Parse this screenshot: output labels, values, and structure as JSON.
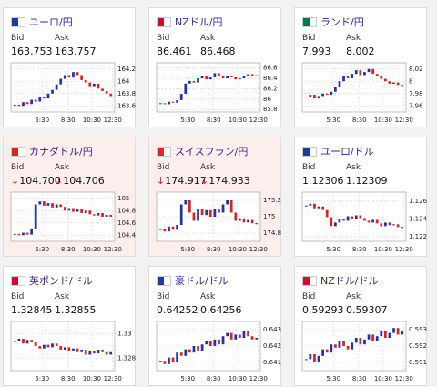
{
  "labels": {
    "bid": "Bid",
    "ask": "Ask"
  },
  "xlabels": [
    "5:30",
    "8:30",
    "10:30",
    "12:30"
  ],
  "cards": [
    {
      "name": "ユーロ/円",
      "bid": "163.753",
      "ask": "163.757",
      "ylim": [
        163.5,
        164.3
      ],
      "yticks": [
        164.2,
        164,
        163.8,
        163.6
      ],
      "values": [
        163.62,
        163.6,
        163.66,
        163.63,
        163.7,
        163.67,
        163.74,
        163.72,
        163.8,
        163.86,
        163.95,
        164.04,
        164.1,
        164.06,
        164.15,
        164.1,
        164.02,
        163.98,
        163.92,
        163.96,
        163.88,
        163.84,
        163.8,
        163.76
      ]
    },
    {
      "name": "NZドル/円",
      "bid": "86.461",
      "ask": "86.468",
      "ylim": [
        85.75,
        86.7
      ],
      "yticks": [
        86.6,
        86.4,
        86.2,
        86,
        85.8
      ],
      "values": [
        85.92,
        85.9,
        85.95,
        85.93,
        85.98,
        86.1,
        86.3,
        86.35,
        86.32,
        86.4,
        86.45,
        86.38,
        86.42,
        86.5,
        86.44,
        86.4,
        86.45,
        86.42,
        86.38,
        86.4,
        86.44,
        86.48,
        86.45,
        86.46
      ]
    },
    {
      "name": "ランド/円",
      "bid": "7.993",
      "ask": "8.002",
      "ylim": [
        7.95,
        8.03
      ],
      "yticks": [
        8.02,
        8,
        7.98,
        7.96
      ],
      "values": [
        7.975,
        7.978,
        7.972,
        7.976,
        7.98,
        7.978,
        7.983,
        7.99,
        8.0,
        8.008,
        8.005,
        8.012,
        8.018,
        8.01,
        8.015,
        8.02,
        8.012,
        8.008,
        8.004,
        8.0,
        7.996,
        7.998,
        7.994,
        7.993
      ]
    },
    {
      "name": "カナダドル/円",
      "arrow": "↓",
      "bid": "104.700",
      "ask": "104.706",
      "ylim": [
        104.3,
        105.1
      ],
      "yticks": [
        105,
        104.8,
        104.6,
        104.4
      ],
      "values": [
        104.42,
        104.4,
        104.44,
        104.41,
        104.5,
        104.9,
        104.95,
        104.88,
        104.92,
        104.85,
        104.9,
        104.86,
        104.8,
        104.84,
        104.78,
        104.82,
        104.76,
        104.8,
        104.74,
        104.72,
        104.76,
        104.7,
        104.73,
        104.7
      ]
    },
    {
      "name": "スイスフラン/円",
      "arrow": "↓",
      "bid": "174.917",
      "ask": "174.933",
      "ylim": [
        174.7,
        175.3
      ],
      "yticks": [
        175.2,
        175,
        174.8
      ],
      "values": [
        174.85,
        174.82,
        174.88,
        174.84,
        174.9,
        175.15,
        175.2,
        175.05,
        174.95,
        175.1,
        175.02,
        175.08,
        175.0,
        175.1,
        175.05,
        175.15,
        175.2,
        175.05,
        174.95,
        174.98,
        174.93,
        174.96,
        174.92,
        174.92
      ]
    },
    {
      "name": "ユーロ/ドル",
      "bid": "1.12306",
      "ask": "1.12309",
      "ylim": [
        1.1215,
        1.127
      ],
      "yticks": [
        1.126,
        1.124,
        1.122
      ],
      "values": [
        1.1255,
        1.1257,
        1.1252,
        1.1254,
        1.125,
        1.1242,
        1.1232,
        1.1236,
        1.124,
        1.1238,
        1.1243,
        1.124,
        1.1244,
        1.1241,
        1.1238,
        1.1236,
        1.1239,
        1.1235,
        1.1232,
        1.1236,
        1.1233,
        1.1234,
        1.1231,
        1.1231
      ]
    },
    {
      "name": "英ポンド/ドル",
      "bid": "1.32845",
      "ask": "1.32855",
      "ylim": [
        1.327,
        1.331
      ],
      "yticks": [
        1.33,
        1.328
      ],
      "values": [
        1.3294,
        1.3296,
        1.3292,
        1.3295,
        1.3293,
        1.329,
        1.3288,
        1.3291,
        1.3289,
        1.3292,
        1.329,
        1.3287,
        1.3289,
        1.3286,
        1.3288,
        1.3285,
        1.3287,
        1.3283,
        1.3286,
        1.3284,
        1.3287,
        1.3285,
        1.3283,
        1.3285
      ]
    },
    {
      "name": "豪ドル/ドル",
      "bid": "0.64252",
      "ask": "0.64256",
      "ylim": [
        0.6405,
        0.6435
      ],
      "yticks": [
        0.643,
        0.642,
        0.641
      ],
      "values": [
        0.6411,
        0.6409,
        0.6413,
        0.641,
        0.6416,
        0.6414,
        0.6418,
        0.6416,
        0.642,
        0.6417,
        0.6421,
        0.6423,
        0.642,
        0.6424,
        0.6421,
        0.6426,
        0.6428,
        0.6424,
        0.6427,
        0.6425,
        0.6429,
        0.6426,
        0.6424,
        0.6425
      ]
    },
    {
      "name": "NZドル/ドル",
      "bid": "0.59293",
      "ask": "0.59307",
      "ylim": [
        0.5905,
        0.5935
      ],
      "yticks": [
        0.593,
        0.592,
        0.591
      ],
      "values": [
        0.5912,
        0.5915,
        0.591,
        0.5914,
        0.5918,
        0.5916,
        0.5921,
        0.5919,
        0.5923,
        0.592,
        0.5918,
        0.5922,
        0.5925,
        0.5921,
        0.5924,
        0.5927,
        0.5923,
        0.5926,
        0.5929,
        0.5925,
        0.5928,
        0.5931,
        0.5927,
        0.5929
      ]
    }
  ]
}
